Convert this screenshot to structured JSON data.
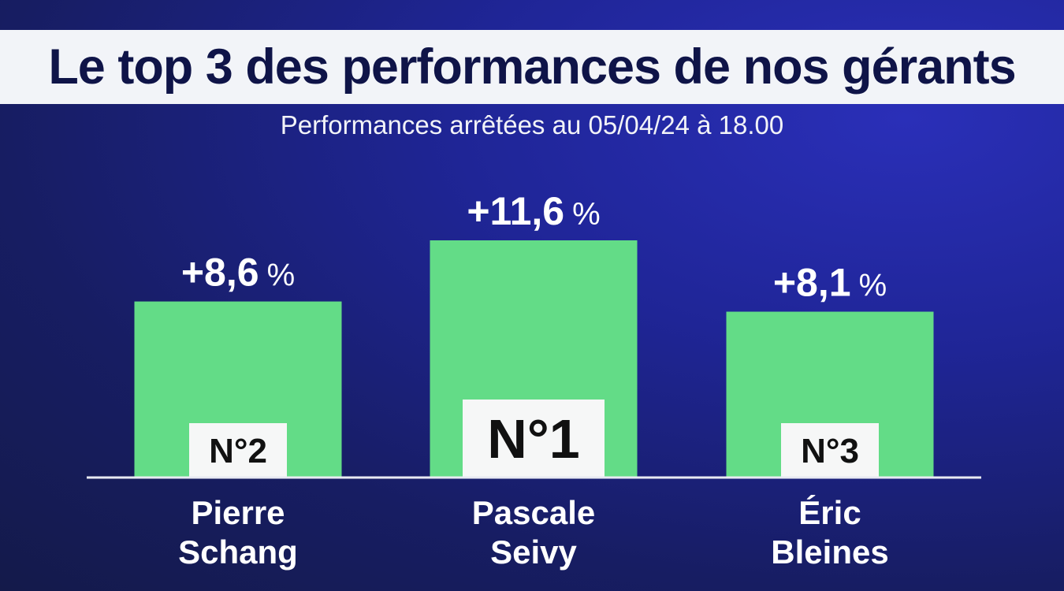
{
  "title": "Le top 3 des performances de nos gérants",
  "subtitle": "Performances arrêtées au 05/04/24 à 18.00",
  "colors": {
    "bar": "#63dc87",
    "background": "#1c2280",
    "title_band": "#f2f4f8",
    "title_text": "#0f1448"
  },
  "chart_data": {
    "type": "bar",
    "categories": [
      "Pierre Schang",
      "Pascale Seivy",
      "Éric Bleines"
    ],
    "values": [
      8.6,
      11.6,
      8.1
    ],
    "value_labels": [
      "+8,6",
      "+11,6",
      "+8,1"
    ],
    "unit": "%",
    "ranks": [
      "N°2",
      "N°1",
      "N°3"
    ],
    "name_lines": [
      [
        "Pierre",
        "Schang"
      ],
      [
        "Pascale",
        "Seivy"
      ],
      [
        "Éric",
        "Bleines"
      ]
    ],
    "title": "Le top 3 des performances de nos gérants",
    "subtitle": "Performances arrêtées au 05/04/24 à 18.00",
    "ylim": [
      0,
      11.6
    ],
    "grid": false
  }
}
